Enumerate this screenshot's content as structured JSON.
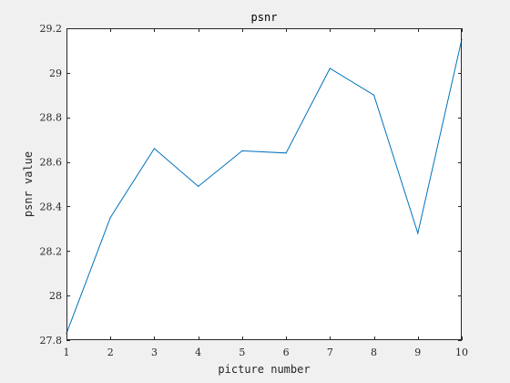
{
  "colors": {
    "figure_background": "#f0f0f0",
    "plot_background": "#ffffff",
    "axis": "#262626",
    "series": "#0072bd"
  },
  "chart_data": {
    "type": "line",
    "title": "psnr",
    "xlabel": "picture number",
    "ylabel": "psnr value",
    "xlim": [
      1,
      10
    ],
    "ylim": [
      27.8,
      29.2
    ],
    "xticks": [
      1,
      2,
      3,
      4,
      5,
      6,
      7,
      8,
      9,
      10
    ],
    "yticks": [
      27.8,
      28,
      28.2,
      28.4,
      28.6,
      28.8,
      29,
      29.2
    ],
    "ytick_labels": [
      "27.8",
      "28",
      "28.2",
      "28.4",
      "28.6",
      "28.8",
      "29",
      "29.2"
    ],
    "grid": false,
    "legend": "none",
    "series": [
      {
        "x": [
          1,
          2,
          3,
          4,
          5,
          6,
          7,
          8,
          9,
          10
        ],
        "values": [
          27.83,
          28.35,
          28.66,
          28.49,
          28.65,
          28.64,
          29.02,
          28.9,
          28.28,
          29.15
        ]
      }
    ]
  }
}
